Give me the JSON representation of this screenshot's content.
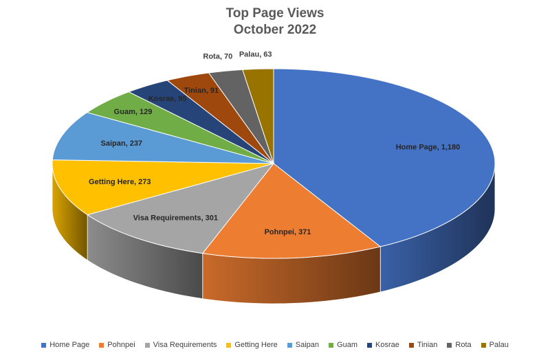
{
  "chart_data": {
    "type": "pie",
    "title": "Top Page Views",
    "subtitle": "October 2022",
    "legend_position": "bottom",
    "three_d": true,
    "slices": [
      {
        "label": "Home Page",
        "value": 1180,
        "value_text": "1,180",
        "color": "#4472C4"
      },
      {
        "label": "Pohnpei",
        "value": 371,
        "value_text": "371",
        "color": "#ED7D31"
      },
      {
        "label": "Visa Requirements",
        "value": 301,
        "value_text": "301",
        "color": "#A5A5A5"
      },
      {
        "label": "Getting Here",
        "value": 273,
        "value_text": "273",
        "color": "#FFC000"
      },
      {
        "label": "Saipan",
        "value": 237,
        "value_text": "237",
        "color": "#5B9BD5"
      },
      {
        "label": "Guam",
        "value": 129,
        "value_text": "129",
        "color": "#70AD47"
      },
      {
        "label": "Kosrae",
        "value": 95,
        "value_text": "95",
        "color": "#264478"
      },
      {
        "label": "Tinian",
        "value": 91,
        "value_text": "91",
        "color": "#9E480E"
      },
      {
        "label": "Rota",
        "value": 70,
        "value_text": "70",
        "color": "#636363"
      },
      {
        "label": "Palau",
        "value": 63,
        "value_text": "63",
        "color": "#997300"
      }
    ]
  }
}
